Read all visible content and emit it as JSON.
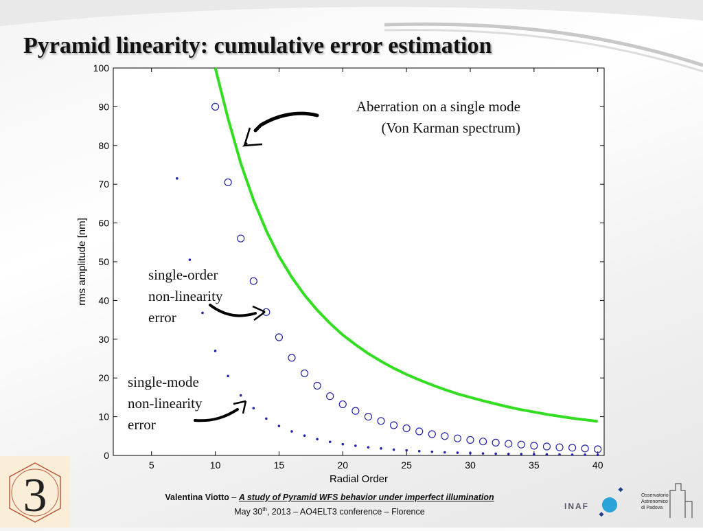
{
  "slide": {
    "title": "Pyramid linearity: cumulative error estimation"
  },
  "annotations": {
    "aberration": [
      "Aberration on a single mode",
      "(Von Karman spectrum)"
    ],
    "single_order": [
      "single-order",
      "non-linearity",
      "error"
    ],
    "single_mode": [
      "single-mode",
      "non-linearity",
      "error"
    ]
  },
  "footer": {
    "author": "Valentina Viotto",
    "separator": " – ",
    "talk_title": "A study of Pyramid WFS behavior under imperfect illumination",
    "date_prefix": "May 30",
    "date_sup": "th",
    "date_rest": ", 2013 – AO4ELT3 conference – Florence"
  },
  "logos": {
    "left_logo_glyph": "3",
    "inaf": "INAF",
    "observatory": [
      "Osservatorio",
      "Astronomico",
      "di Padova"
    ]
  },
  "colors": {
    "green_curve": "#33dd22",
    "markers": "#2222aa",
    "title": "#111111"
  },
  "chart_data": {
    "type": "scatter",
    "title": "",
    "xlabel": "Radial Order",
    "ylabel": "rms amplitude [nm]",
    "xlim": [
      2,
      40.5
    ],
    "ylim": [
      0,
      100
    ],
    "xticks": [
      5,
      10,
      15,
      20,
      25,
      30,
      35,
      40
    ],
    "yticks": [
      0,
      10,
      20,
      30,
      40,
      50,
      60,
      70,
      80,
      90,
      100
    ],
    "grid": false,
    "series": [
      {
        "marker": "line",
        "x": [
          10,
          11,
          12,
          13,
          14,
          15,
          16,
          17,
          18,
          19,
          20,
          21,
          22,
          23,
          24,
          25,
          26,
          27,
          28,
          29,
          30,
          31,
          32,
          33,
          34,
          35,
          36,
          37,
          38,
          39,
          40
        ],
        "values": [
          100,
          87.0,
          75.4,
          65.9,
          58.0,
          51.4,
          46.0,
          41.4,
          37.5,
          34.1,
          31.1,
          28.6,
          26.3,
          24.3,
          22.5,
          20.9,
          19.5,
          18.2,
          17.0,
          15.9,
          15.0,
          14.1,
          13.3,
          12.5,
          11.8,
          11.2,
          10.6,
          10.1,
          9.6,
          9.2,
          8.8
        ]
      },
      {
        "marker": "circle",
        "x": [
          10,
          11,
          12,
          13,
          14,
          15,
          16,
          17,
          18,
          19,
          20,
          21,
          22,
          23,
          24,
          25,
          26,
          27,
          28,
          29,
          30,
          31,
          32,
          33,
          34,
          35,
          36,
          37,
          38,
          39,
          40
        ],
        "values": [
          90,
          70.5,
          56.0,
          45.0,
          37.0,
          30.5,
          25.2,
          21.2,
          18.0,
          15.3,
          13.2,
          11.5,
          10.0,
          8.9,
          7.8,
          7.0,
          6.2,
          5.5,
          5.0,
          4.4,
          4.0,
          3.6,
          3.3,
          3.0,
          2.8,
          2.5,
          2.3,
          2.1,
          2.0,
          1.8,
          1.6
        ]
      },
      {
        "marker": "dot",
        "x": [
          7,
          8,
          9,
          10,
          11,
          12,
          13,
          14,
          15,
          16,
          17,
          18,
          19,
          20,
          21,
          22,
          23,
          24,
          25,
          26,
          27,
          28,
          29,
          30,
          31,
          32,
          33,
          34,
          35,
          36,
          37,
          38,
          39,
          40
        ],
        "values": [
          71.5,
          50.5,
          36.8,
          27.0,
          20.5,
          15.5,
          12.2,
          9.5,
          7.6,
          6.2,
          5.1,
          4.2,
          3.5,
          2.9,
          2.5,
          2.1,
          1.8,
          1.5,
          1.3,
          1.1,
          0.95,
          0.8,
          0.7,
          0.6,
          0.5,
          0.45,
          0.4,
          0.35,
          0.3,
          0.27,
          0.24,
          0.2,
          0.18,
          0.15
        ]
      }
    ]
  }
}
